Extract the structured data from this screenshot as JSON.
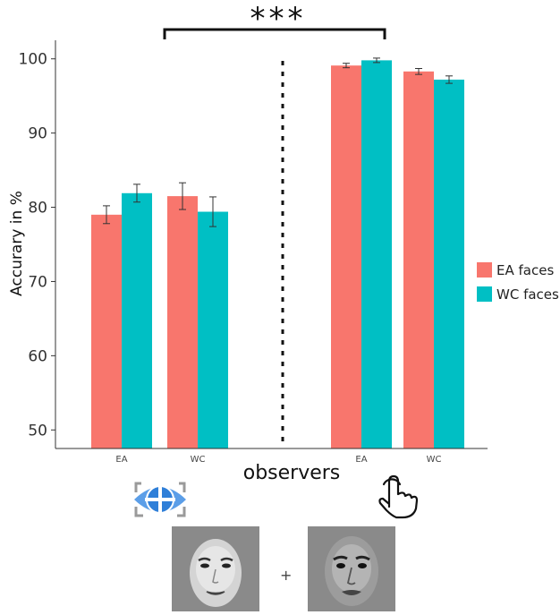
{
  "chart_data": {
    "type": "bar",
    "title": "",
    "xlabel": "observers",
    "ylabel": "Accurary in %",
    "ylim": [
      47.5,
      102.5
    ],
    "yticks": [
      50,
      60,
      70,
      80,
      90,
      100
    ],
    "categories": [
      "EA",
      "WC",
      "EA",
      "WC"
    ],
    "groups": [
      {
        "condition": "eye-tracking",
        "categories": [
          "EA",
          "WC"
        ]
      },
      {
        "condition": "touch",
        "categories": [
          "EA",
          "WC"
        ]
      }
    ],
    "series": [
      {
        "name": "EA faces",
        "color": "#F8766D",
        "values": [
          79.0,
          81.5,
          99.1,
          98.3
        ],
        "errors": [
          1.2,
          1.8,
          0.3,
          0.4
        ]
      },
      {
        "name": "WC faces",
        "color": "#00BFC4",
        "values": [
          81.9,
          79.4,
          99.8,
          97.2
        ],
        "errors": [
          1.2,
          2.0,
          0.3,
          0.5
        ]
      }
    ],
    "significance": "***",
    "legend": "right",
    "grid": false
  },
  "icons": {
    "eye_tracking": "eye-tracking-icon",
    "touch": "touch-hand-icon"
  },
  "stimulus": {
    "separator": "+",
    "faces": [
      "east-asian-face",
      "white-caucasian-face"
    ]
  }
}
